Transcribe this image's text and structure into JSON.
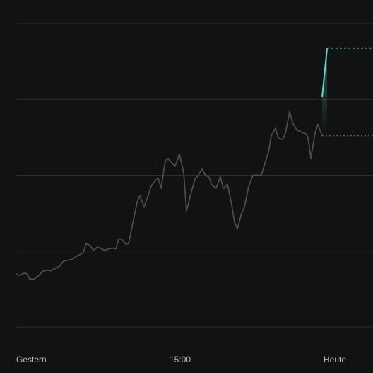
{
  "chart_data": {
    "type": "line",
    "x": [
      0,
      6,
      12,
      16,
      20,
      26,
      32,
      38,
      44,
      50,
      56,
      62,
      68,
      74,
      80,
      86,
      92,
      96,
      100,
      106,
      110,
      116,
      120,
      126,
      132,
      138,
      142,
      146,
      150,
      156,
      160,
      166,
      172,
      176,
      182,
      188,
      192,
      198,
      202,
      206,
      212,
      216,
      220,
      226,
      232,
      238,
      242,
      248,
      254,
      258,
      264,
      268,
      274,
      278,
      284,
      290,
      294,
      300,
      306,
      310,
      314,
      320,
      324,
      330,
      336,
      342,
      348,
      354,
      358,
      362,
      368,
      372,
      378,
      382,
      388,
      392,
      398,
      404,
      410,
      414,
      418,
      424,
      428,
      434
    ],
    "series": [
      {
        "color": "#4a4b4e",
        "values": [
          0.7,
          0.68,
          0.71,
          0.7,
          0.63,
          0.63,
          0.67,
          0.73,
          0.75,
          0.74,
          0.77,
          0.8,
          0.87,
          0.88,
          0.89,
          0.93,
          0.96,
          0.98,
          1.1,
          1.07,
          1.01,
          1.05,
          1.04,
          1.01,
          1.03,
          1.04,
          1.03,
          1.16,
          1.16,
          1.09,
          1.1,
          1.37,
          1.64,
          1.73,
          1.58,
          1.74,
          1.86,
          1.93,
          1.96,
          1.83,
          2.19,
          2.22,
          2.17,
          2.12,
          2.28,
          2.03,
          1.53,
          1.75,
          1.95,
          1.99,
          2.08,
          2.01,
          1.97,
          1.87,
          1.83,
          1.98,
          1.82,
          1.88,
          1.61,
          1.38,
          1.29,
          1.5,
          1.58,
          1.85,
          2.0,
          2.0,
          2.0,
          2.19,
          2.3,
          2.52,
          2.62,
          2.49,
          2.47,
          2.55,
          2.84,
          2.69,
          2.6,
          2.57,
          2.55,
          2.5,
          2.22,
          2.56,
          2.67,
          2.52
        ]
      },
      {
        "color": "#5fd8c0",
        "x": [
          434,
          441
        ],
        "values": [
          3.03,
          3.67
        ]
      }
    ],
    "xlim": [
      0,
      506
    ],
    "xticks": [
      {
        "value": 0,
        "label": "Gestern"
      },
      {
        "value": 233,
        "label": "15:00"
      },
      {
        "value": 452,
        "label": "Heute"
      }
    ],
    "ylim": [
      0,
      4
    ],
    "yticks": [
      0,
      1,
      2,
      3,
      4
    ],
    "grid": true
  }
}
